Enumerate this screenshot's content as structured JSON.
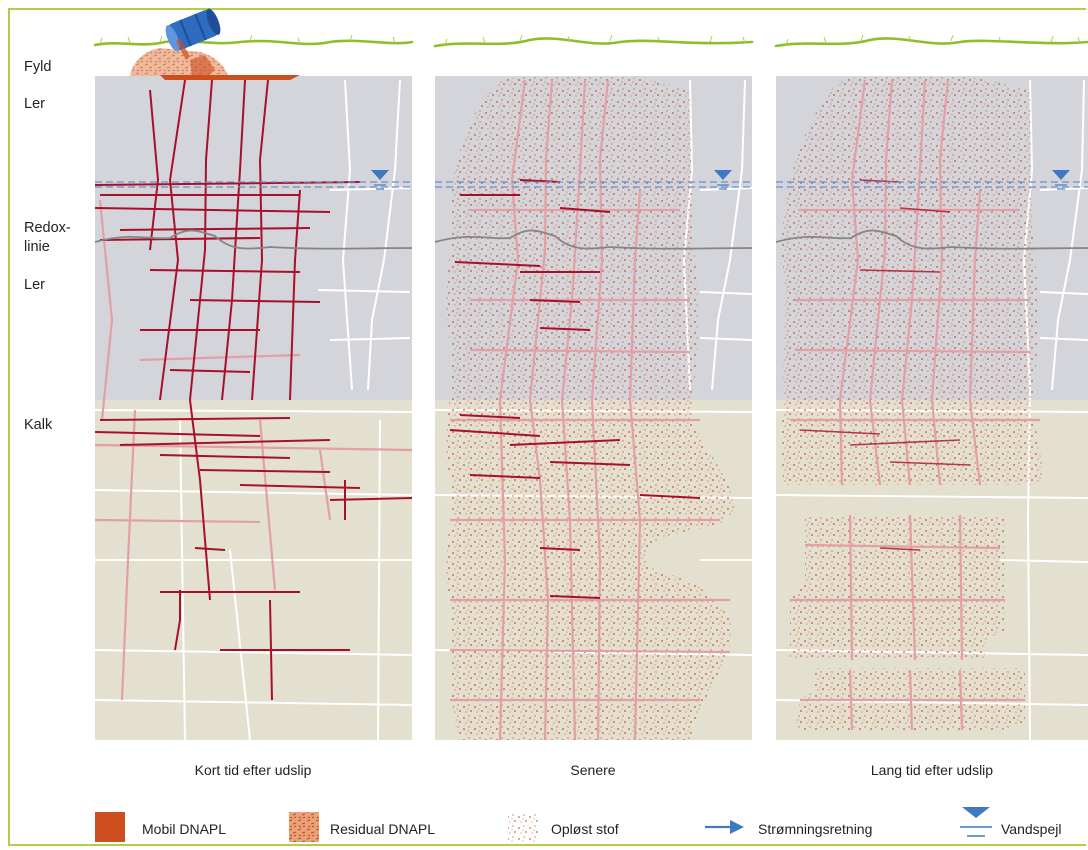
{
  "layers": {
    "fyld": "Fyld",
    "ler_upper": "Ler",
    "redox_line1": "Redox-",
    "redox_line2": "linie",
    "ler_lower": "Ler",
    "kalk": "Kalk"
  },
  "panels": [
    {
      "caption": "Kort tid efter udslip"
    },
    {
      "caption": "Senere"
    },
    {
      "caption": "Lang tid efter udslip"
    }
  ],
  "legend": {
    "mobil": "Mobil DNAPL",
    "residual": "Residual DNAPL",
    "oploest": "Opløst stof",
    "stroemning": "Strømningsretning",
    "vandspejl": "Vandspejl"
  },
  "colors": {
    "clay": "#d4d5db",
    "chalk": "#e3e0cf",
    "dnapl_dark": "#a8102a",
    "dnapl_light": "#e2a0a6",
    "mobile": "#cd4f1f",
    "dot": "#c9542a",
    "grass": "#8dbf2a",
    "water": "#3f79c4",
    "redox": "#8a8a8a",
    "frame": "#b5cc45"
  }
}
